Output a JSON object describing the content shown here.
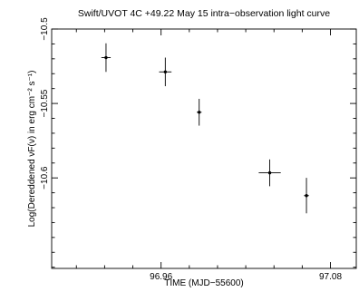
{
  "chart_data": {
    "type": "scatter",
    "title": "Swift/UVOT 4C +49.22 May 15 intra−observation light curve",
    "xlabel": "TIME (MJD−55600)",
    "ylabel": "Log(Dereddened νF(ν) in erg cm⁻² s⁻¹)",
    "xlim": [
      96.8825,
      97.0983
    ],
    "ylim": [
      -10.6608,
      -10.5
    ],
    "x_major_ticks": [
      96.96,
      97.08
    ],
    "x_major_tick_labels": [
      "96.96",
      "97.08"
    ],
    "x_minor_step": 0.02,
    "y_major_ticks": [
      -10.5,
      -10.55,
      -10.6
    ],
    "y_major_tick_labels": [
      "−10.5",
      "−10.55",
      "−10.6"
    ],
    "y_minor_step": 0.01,
    "grid": false,
    "series": [
      {
        "points": [
          {
            "x": 96.921,
            "y": -10.5192,
            "xerr": 0.0033,
            "yerr": 0.0096
          },
          {
            "x": 96.963,
            "y": -10.5288,
            "xerr": 0.0044,
            "yerr": 0.0096
          },
          {
            "x": 96.987,
            "y": -10.5559,
            "xerr": 0.0017,
            "yerr": 0.009
          },
          {
            "x": 97.037,
            "y": -10.5966,
            "xerr": 0.0078,
            "yerr": 0.009
          },
          {
            "x": 97.063,
            "y": -10.6119,
            "xerr": 0.0017,
            "yerr": 0.0119
          }
        ]
      }
    ]
  }
}
